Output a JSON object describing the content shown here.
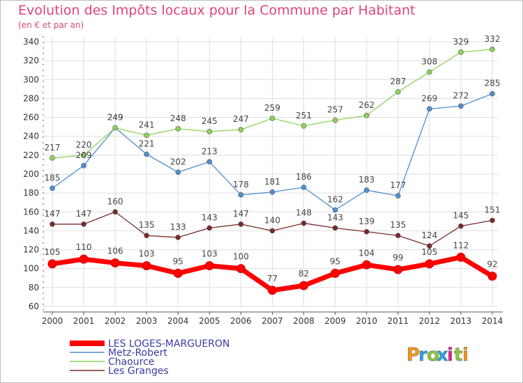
{
  "title": "Evolution des Impôts locaux pour la Commune par Habitant",
  "subtitle": "(en € et par an)",
  "logo": "Proxiti",
  "colors": {
    "accent": "#e0447a",
    "grid": "#dddddd",
    "logo": [
      "#f7941d",
      "#2ca3dd",
      "#8cc63f",
      "#2ca3dd",
      "#e91e8c",
      "#8cc63f",
      "#f7941d"
    ]
  },
  "chart_data": {
    "type": "line",
    "title": "Evolution des Impôts locaux pour la Commune par Habitant",
    "subtitle": "(en € et par an)",
    "x": [
      "2000",
      "2001",
      "2002",
      "2003",
      "2004",
      "2005",
      "2006",
      "2007",
      "2008",
      "2009",
      "2010",
      "2011",
      "2012",
      "2013",
      "2014"
    ],
    "ylim": [
      60,
      340
    ],
    "yticks": [
      60,
      80,
      100,
      120,
      140,
      160,
      180,
      200,
      220,
      240,
      260,
      280,
      300,
      320,
      340
    ],
    "grid": true,
    "legend_position": "bottom-left",
    "series": [
      {
        "name": "LES LOGES-MARGUERON",
        "color": "#ff0000",
        "values": [
          105,
          110,
          106,
          103,
          95,
          103,
          100,
          77,
          82,
          95,
          104,
          99,
          105,
          112,
          92
        ]
      },
      {
        "name": "Metz-Robert",
        "color": "#4f8fcf",
        "values": [
          185,
          209,
          249,
          221,
          202,
          213,
          178,
          181,
          186,
          162,
          183,
          177,
          269,
          272,
          285
        ]
      },
      {
        "name": "Chaource",
        "color": "#8ed45a",
        "values": [
          217,
          220,
          249,
          241,
          248,
          245,
          247,
          259,
          251,
          257,
          262,
          287,
          308,
          329,
          332
        ]
      },
      {
        "name": "Les Granges",
        "color": "#7a2a2a",
        "values": [
          147,
          147,
          160,
          135,
          133,
          143,
          147,
          140,
          148,
          143,
          139,
          135,
          124,
          145,
          151
        ]
      }
    ]
  }
}
